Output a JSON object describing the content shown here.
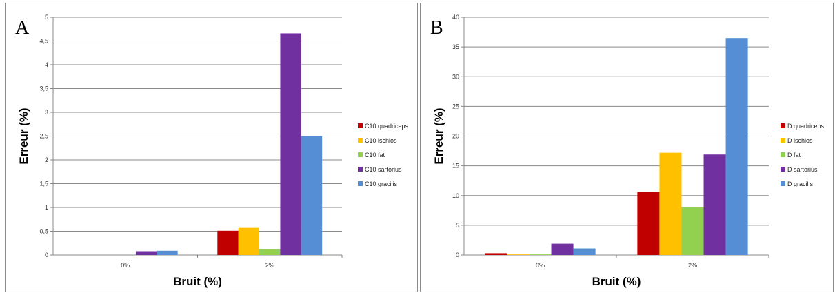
{
  "chart_data": [
    {
      "type": "bar",
      "panel_label": "A",
      "xlabel": "Bruit (%)",
      "ylabel": "Erreur (%)",
      "categories": [
        "0%",
        "2%"
      ],
      "ylim": [
        0,
        5
      ],
      "yticks": [
        "0",
        "0,5",
        "1",
        "1,5",
        "2",
        "2,5",
        "3",
        "3,5",
        "4",
        "4,5",
        "5"
      ],
      "ytick_values": [
        0,
        0.5,
        1,
        1.5,
        2,
        2.5,
        3,
        3.5,
        4,
        4.5,
        5
      ],
      "grid": true,
      "legend_position": "right",
      "series": [
        {
          "name": "C10 quadriceps",
          "color": "#c00000",
          "values": [
            0,
            0.51
          ]
        },
        {
          "name": "C10 ischios",
          "color": "#ffc000",
          "values": [
            0,
            0.57
          ]
        },
        {
          "name": "C10 fat",
          "color": "#92d050",
          "values": [
            0,
            0.13
          ]
        },
        {
          "name": "C10 sartorius",
          "color": "#7030a0",
          "values": [
            0.08,
            4.66
          ]
        },
        {
          "name": "C10 gracilis",
          "color": "#558ed5",
          "values": [
            0.09,
            2.5
          ]
        }
      ]
    },
    {
      "type": "bar",
      "panel_label": "B",
      "xlabel": "Bruit (%)",
      "ylabel": "Erreur (%)",
      "categories": [
        "0%",
        "2%"
      ],
      "ylim": [
        0,
        40
      ],
      "yticks": [
        "0",
        "5",
        "10",
        "15",
        "20",
        "25",
        "30",
        "35",
        "40"
      ],
      "ytick_values": [
        0,
        5,
        10,
        15,
        20,
        25,
        30,
        35,
        40
      ],
      "grid": true,
      "legend_position": "right",
      "series": [
        {
          "name": "D quadriceps",
          "color": "#c00000",
          "values": [
            0.3,
            10.6
          ]
        },
        {
          "name": "D ischios",
          "color": "#ffc000",
          "values": [
            0.1,
            17.2
          ]
        },
        {
          "name": "D fat",
          "color": "#92d050",
          "values": [
            0.1,
            8.0
          ]
        },
        {
          "name": "D sartorius",
          "color": "#7030a0",
          "values": [
            1.9,
            16.9
          ]
        },
        {
          "name": "D gracilis",
          "color": "#558ed5",
          "values": [
            1.1,
            36.5
          ]
        }
      ]
    }
  ]
}
